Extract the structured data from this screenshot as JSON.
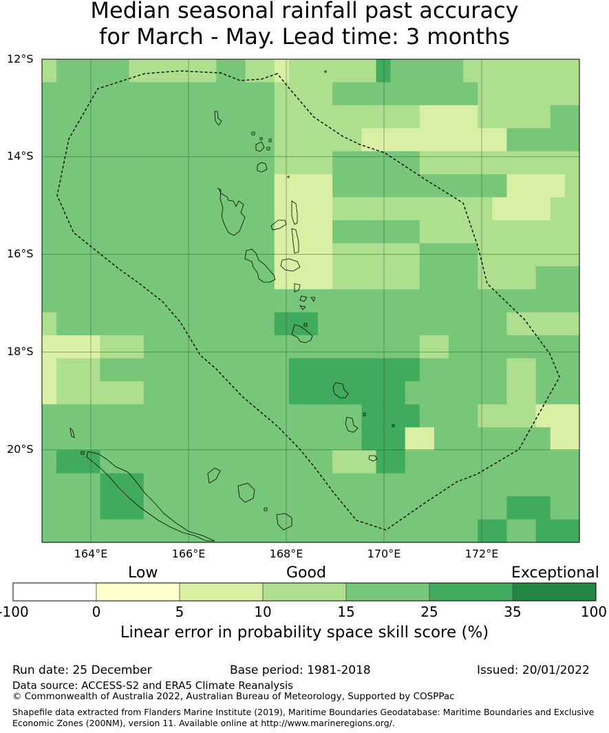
{
  "title": {
    "line1": "Median seasonal rainfall past accuracy",
    "line2": "for March - May. Lead time: 3 months"
  },
  "map": {
    "lon_range": [
      163,
      174
    ],
    "lat_range": [
      -21.9,
      -12
    ],
    "lat_labels": [
      "12°S",
      "14°S",
      "16°S",
      "18°S",
      "20°S"
    ],
    "lon_labels": [
      "164°E",
      "166°E",
      "168°E",
      "170°E",
      "172°E"
    ],
    "grid_cell_colors": [
      "A,L,L,L,L,L,A,A,A,A,A,A,L,L,A,A,P,A,A,A,A,A,A,M,L,L,L,L,L,A,A,A,A,A,A,A,A",
      "L,L,L,L,L,L,L,L,L,L,L,L,L,L,L,L,A,A,A,A,L,L,L,L,L,L,L,L,L,L,A,A,A,A,A,A,A",
      "L,L,L,L,L,L,L,L,L,L,L,L,L,L,L,L,A,A,A,A,A,A,A,A,A,A,P,P,P,P,A,A,A,A,A,L,L",
      "L,L,L,L,L,L,L,L,L,L,L,L,L,L,L,L,A,A,A,A,A,A,P,P,P,P,P,P,P,P,P,P,L,L,L,L,L",
      "L,L,L,L,L,L,L,L,L,L,L,L,L,L,L,L,A,A,A,A,L,L,L,L,L,L,A,A,A,A,A,A,A,A,A,A,A",
      "L,L,L,L,L,L,L,L,L,L,L,L,L,L,L,L,P,P,P,P,L,L,L,L,L,L,L,L,L,L,L,L,P,P,P,P,A",
      "L,L,L,L,L,L,L,L,L,L,L,L,L,L,L,L,P,P,P,P,A,A,A,A,A,A,A,A,A,A,A,P,P,P,P,A,A",
      "L,L,L,L,L,L,L,L,L,L,L,L,L,L,L,L,P,P,P,P,L,L,L,L,L,L,A,A,A,A,A,A,A,A,A,A,A",
      "L,L,L,L,L,L,L,L,L,L,L,L,L,L,L,L,P,P,P,P,A,A,A,A,A,A,L,L,L,L,A,A,A,A,A,A,A",
      "L,L,L,L,L,L,L,L,L,L,L,L,L,L,L,L,P,P,P,P,A,A,A,A,A,A,L,L,L,L,A,A,A,A,L,L,L",
      "L,L,L,L,L,L,L,L,L,L,L,L,L,L,L,L,L,L,L,L,L,L,L,L,L,L,L,L,L,L,L,L,L,L,L,L,L",
      "A,L,L,L,L,L,L,L,L,L,L,L,L,L,L,L,M,M,M,L,L,L,L,L,L,L,L,L,L,L,L,L,A,A,A,A,A",
      "P,P,P,P,A,A,A,L,L,L,L,L,L,L,L,L,L,L,L,L,L,L,L,L,L,L,A,A,L,L,L,L,L,L,L,L,L",
      "P,A,A,A,L,L,L,L,L,L,L,L,L,L,L,L,L,M,M,M,M,M,M,M,M,M,L,L,L,L,L,L,A,A,L,L,L",
      "P,A,A,A,A,A,A,L,L,L,L,L,L,L,L,L,L,M,M,M,M,M,M,M,M,L,L,L,L,L,L,L,A,A,L,L,L",
      "L,L,L,L,L,L,L,L,L,L,L,L,L,L,L,L,L,L,L,L,L,L,M,M,M,M,L,L,L,L,A,A,A,A,P,P,P",
      "L,L,L,L,L,L,L,L,L,L,L,L,L,L,L,L,L,L,L,L,L,L,M,M,M,P,P,L,L,L,L,L,L,L,L,P,P",
      "L,M,M,M,L,L,L,L,L,L,L,L,L,L,L,L,L,L,L,L,A,A,A,M,M,L,L,L,L,L,L,L,L,L,L,L,L",
      "L,L,L,L,M,M,M,L,L,L,L,L,L,L,L,L,L,L,L,L,L,L,L,L,L,L,L,L,L,L,L,L,L,L,L,L,L",
      "L,L,L,L,M,M,M,L,L,L,L,L,L,L,L,L,L,L,L,L,L,L,L,L,L,L,L,L,L,L,L,L,M,M,M,L,L",
      "L,L,L,L,L,L,L,L,L,L,L,L,L,L,L,L,L,L,L,L,L,L,L,L,L,L,L,L,L,L,M,M,L,L,M,M,M"
    ],
    "colors": {
      "P": "#d9efa3",
      "A": "#addf8e",
      "L": "#78c679",
      "M": "#41ab5d",
      "coast": "#000000",
      "eez": "#000000",
      "grid": "#4a4a4a"
    }
  },
  "colorbar": {
    "categories": [
      "Low",
      "Good",
      "Exceptional"
    ],
    "tick_labels": [
      "-100",
      "0",
      "5",
      "10",
      "15",
      "25",
      "35",
      "100"
    ],
    "colors": [
      "#ffffff",
      "#ffffcc",
      "#d9efa3",
      "#addf8e",
      "#78c679",
      "#41ab5d",
      "#238443"
    ],
    "label": "Linear error in probability space skill score (%)"
  },
  "footer": {
    "run_date": "Run date: 25 December",
    "base_period": "Base period: 1981-2018",
    "issued": "Issued: 20/01/2022",
    "data_source": "Data source: ACCESS-S2 and ERA5 Climate Reanalysis",
    "copyright": "© Commonwealth of Australia 2022, Australian Bureau of Meteorology, Supported by COSPPac",
    "shapefile_line1": "Shapefile data extracted from Flanders Marine Institute (2019), Maritime Boundaries Geodatabase: Maritime Boundaries and Exclusive",
    "shapefile_line2": "Economic Zones (200NM), version 11. Available online at http://www.marineregions.org/."
  }
}
